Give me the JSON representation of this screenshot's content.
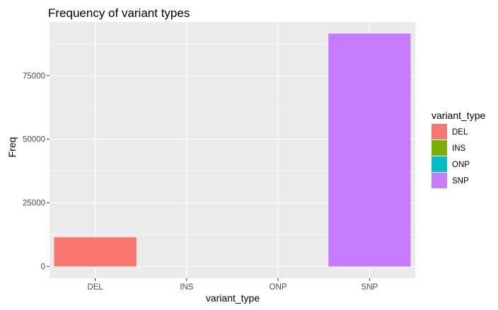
{
  "chart_data": {
    "type": "bar",
    "title": "Frequency of variant types",
    "xlabel": "variant_type",
    "ylabel": "Freq",
    "categories": [
      "DEL",
      "INS",
      "ONP",
      "SNP"
    ],
    "values": [
      11500,
      0,
      0,
      91500
    ],
    "colors": [
      "#F8766D",
      "#7CAE00",
      "#00BFC4",
      "#C77CFF"
    ],
    "ylim": [
      -4575,
      96075
    ],
    "yticks": [
      0,
      25000,
      50000,
      75000
    ],
    "ytick_labels": [
      "0",
      "25000",
      "50000",
      "75000"
    ],
    "grid": true,
    "panel_background": "#EBEBEB",
    "grid_color": "#FFFFFF",
    "legend": {
      "title": "variant_type",
      "position": "right",
      "entries": [
        "DEL",
        "INS",
        "ONP",
        "SNP"
      ]
    }
  }
}
